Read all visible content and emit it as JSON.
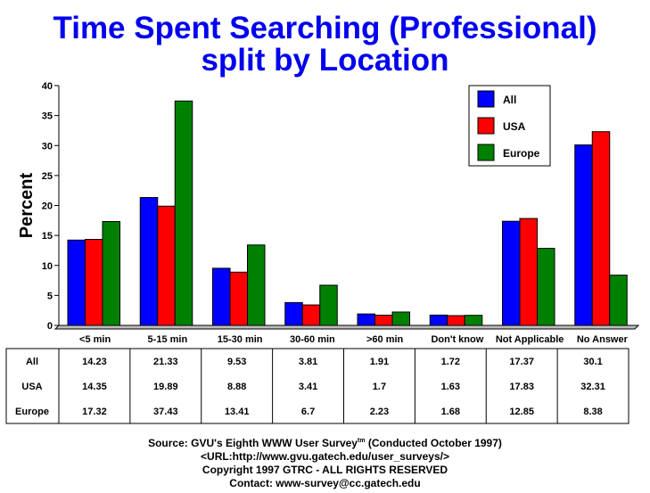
{
  "chart_data": {
    "type": "bar",
    "title": [
      "Time Spent Searching (Professional)",
      "split by Location"
    ],
    "ylabel": "Percent",
    "xlabel": "",
    "ylim": [
      0,
      40
    ],
    "yticks": [
      "0",
      "5",
      "10",
      "15",
      "20",
      "25",
      "30",
      "35",
      "40"
    ],
    "categories": [
      "<5 min",
      "5-15 min",
      "15-30 min",
      "30-60 min",
      ">60 min",
      "Don't know",
      "Not Applicable",
      "No Answer"
    ],
    "series": [
      {
        "name": "All",
        "color": "#0000ff",
        "values": [
          14.23,
          21.33,
          9.53,
          3.81,
          1.91,
          1.72,
          17.37,
          30.1
        ],
        "labels": [
          "14.23",
          "21.33",
          "9.53",
          "3.81",
          "1.91",
          "1.72",
          "17.37",
          "30.1"
        ]
      },
      {
        "name": "USA",
        "color": "#ff0000",
        "values": [
          14.35,
          19.89,
          8.88,
          3.41,
          1.7,
          1.63,
          17.83,
          32.31
        ],
        "labels": [
          "14.35",
          "19.89",
          "8.88",
          "3.41",
          "1.7",
          "1.63",
          "17.83",
          "32.31"
        ]
      },
      {
        "name": "Europe",
        "color": "#008000",
        "values": [
          17.32,
          37.43,
          13.41,
          6.7,
          2.23,
          1.68,
          12.85,
          8.38
        ],
        "labels": [
          "17.32",
          "37.43",
          "13.41",
          "6.7",
          "2.23",
          "1.68",
          "12.85",
          "8.38"
        ]
      }
    ],
    "legend_position": "top-right",
    "grid": false
  },
  "source": {
    "line1_prefix": "Source: GVU's Eighth WWW User Survey",
    "line1_sup": "tm",
    "line1_suffix": " (Conducted October 1997)",
    "line2": "<URL:http://www.gvu.gatech.edu/user_surveys/>",
    "line3": "Copyright 1997 GTRC - ALL RIGHTS RESERVED",
    "line4": "Contact: www-survey@cc.gatech.edu"
  }
}
